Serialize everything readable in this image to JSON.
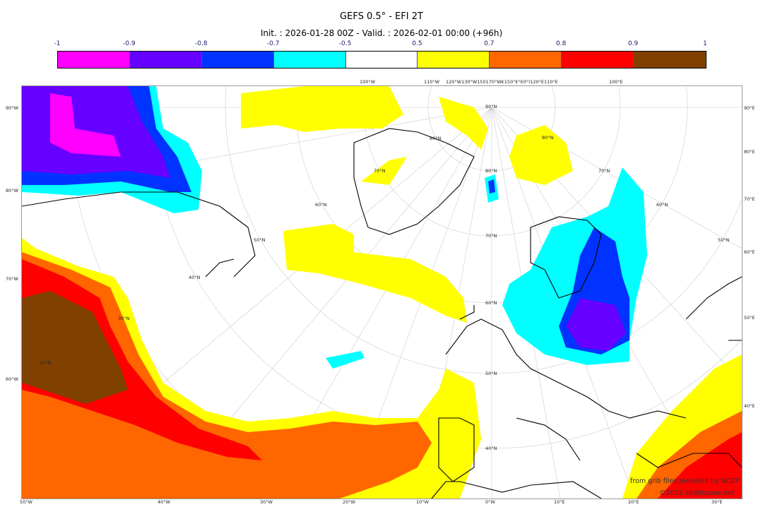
{
  "title": "GEFS 0.5° - EFI 2T",
  "subtitle": "Init. : 2026-01-28 00Z - Valid. : 2026-02-01 00:00 (+96h)",
  "colorbar": {
    "ticks": [
      "-1",
      "-0.9",
      "-0.8",
      "-0.7",
      "-0.5",
      "0.5",
      "0.7",
      "0.8",
      "0.9",
      "1"
    ],
    "colors": [
      "#ff00ff",
      "#6600ff",
      "#0033ff",
      "#00ffff",
      "#ffffff",
      "#ffff00",
      "#ff6600",
      "#ff0000",
      "#804000"
    ]
  },
  "axes": {
    "left": [
      "90°W",
      "80°W",
      "70°W",
      "60°W"
    ],
    "right": [
      "90°E",
      "80°E",
      "70°E",
      "60°E",
      "50°E",
      "40°E"
    ],
    "bottom": [
      "50°W",
      "40°W",
      "30°W",
      "20°W",
      "10°W",
      "0°W",
      "10°E",
      "20°E",
      "30°E"
    ],
    "top": [
      "100°W",
      "110°W",
      "120°W130°W150170°W€150°E°E0°I120°E",
      "110°E",
      "100°E"
    ],
    "parallels": [
      "90°N",
      "80°N",
      "70°N",
      "60°N",
      "50°N",
      "40°N",
      "70°N",
      "60°N",
      "50°N",
      "40°N",
      "30°N",
      "20°N",
      "80°N",
      "80°N",
      "70°N",
      "60°N",
      "50°N"
    ]
  },
  "credits": {
    "line1": "from grib files provided by NCEP",
    "line2": "©2026 sb@inzone.net"
  }
}
